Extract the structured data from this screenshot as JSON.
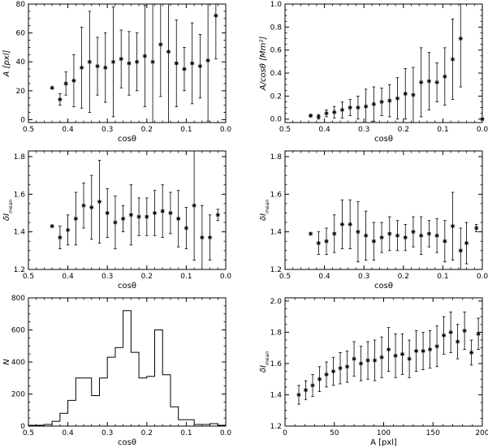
{
  "chart_data": [
    {
      "type": "scatter",
      "xlabel": "cosθ",
      "ylabel": "A [pxl]",
      "xlim": [
        0.5,
        0.0
      ],
      "ylim": [
        -2,
        80
      ],
      "xticks": [
        "0.5",
        "0.4",
        "0.3",
        "0.2",
        "0.1",
        "0.0"
      ],
      "yticks": [
        "0",
        "20",
        "40",
        "60",
        "80"
      ],
      "marker": "asterisk",
      "error_bars": true,
      "x": [
        0.44,
        0.42,
        0.405,
        0.385,
        0.365,
        0.345,
        0.325,
        0.305,
        0.285,
        0.265,
        0.245,
        0.225,
        0.205,
        0.185,
        0.165,
        0.145,
        0.125,
        0.105,
        0.085,
        0.065,
        0.045,
        0.025
      ],
      "y": [
        22,
        14,
        25,
        27,
        36,
        40,
        37,
        36,
        40,
        42,
        39,
        40,
        44,
        40,
        52,
        47,
        39,
        35,
        39,
        37,
        41,
        72
      ],
      "err": [
        0,
        4,
        8,
        18,
        28,
        35,
        20,
        24,
        38,
        20,
        22,
        20,
        35,
        44,
        36,
        50,
        30,
        15,
        28,
        22,
        42,
        30
      ]
    },
    {
      "type": "scatter",
      "xlabel": "cosθ",
      "ylabel": "A/cosθ [Mm²]",
      "xlim": [
        0.5,
        0.0
      ],
      "ylim": [
        -0.03,
        1.0
      ],
      "xticks": [
        "0.5",
        "0.4",
        "0.3",
        "0.2",
        "0.1",
        "0.0"
      ],
      "yticks": [
        "0.0",
        "0.2",
        "0.4",
        "0.6",
        "0.8",
        "1.0"
      ],
      "marker": "asterisk",
      "error_bars": true,
      "x": [
        0.435,
        0.415,
        0.395,
        0.375,
        0.355,
        0.335,
        0.315,
        0.295,
        0.275,
        0.255,
        0.235,
        0.215,
        0.195,
        0.175,
        0.155,
        0.135,
        0.115,
        0.095,
        0.075,
        0.055,
        0.0
      ],
      "y": [
        0.03,
        0.02,
        0.05,
        0.06,
        0.08,
        0.1,
        0.1,
        0.11,
        0.13,
        0.15,
        0.16,
        0.18,
        0.22,
        0.21,
        0.32,
        0.33,
        0.32,
        0.37,
        0.52,
        0.7,
        0.0
      ],
      "err": [
        0.01,
        0.02,
        0.03,
        0.05,
        0.07,
        0.07,
        0.1,
        0.15,
        0.15,
        0.12,
        0.14,
        0.18,
        0.22,
        0.24,
        0.3,
        0.25,
        0.17,
        0.25,
        0.35,
        0.42,
        0.0
      ]
    },
    {
      "type": "scatter",
      "xlabel": "cosθ",
      "ylabel": "δI_mean",
      "xlim": [
        0.5,
        0.0
      ],
      "ylim": [
        1.2,
        1.83
      ],
      "xticks": [
        "0.5",
        "0.4",
        "0.3",
        "0.2",
        "0.1",
        "0.0"
      ],
      "yticks": [
        "1.2",
        "1.4",
        "1.6",
        "1.8"
      ],
      "marker": "asterisk",
      "error_bars": true,
      "x": [
        0.44,
        0.42,
        0.4,
        0.38,
        0.36,
        0.34,
        0.32,
        0.3,
        0.28,
        0.26,
        0.24,
        0.22,
        0.2,
        0.18,
        0.16,
        0.14,
        0.12,
        0.1,
        0.08,
        0.06,
        0.04,
        0.02
      ],
      "y": [
        1.43,
        1.37,
        1.41,
        1.47,
        1.54,
        1.53,
        1.56,
        1.5,
        1.45,
        1.47,
        1.49,
        1.48,
        1.48,
        1.5,
        1.51,
        1.5,
        1.47,
        1.42,
        1.54,
        1.37,
        1.37,
        1.49
      ],
      "err": [
        0,
        0.06,
        0.08,
        0.14,
        0.12,
        0.17,
        0.22,
        0.13,
        0.14,
        0.07,
        0.16,
        0.1,
        0.1,
        0.12,
        0.14,
        0.11,
        0.15,
        0.11,
        0.29,
        0.17,
        0.12,
        0.03
      ]
    },
    {
      "type": "scatter",
      "xlabel": "cosθ",
      "ylabel": "δI_mean",
      "xlim": [
        0.5,
        0.0
      ],
      "ylim": [
        1.2,
        1.83
      ],
      "xticks": [
        "0.5",
        "0.4",
        "0.3",
        "0.2",
        "0.1",
        "0.0"
      ],
      "yticks": [
        "1.2",
        "1.4",
        "1.6",
        "1.8"
      ],
      "marker": "asterisk",
      "error_bars": true,
      "x": [
        0.435,
        0.415,
        0.395,
        0.375,
        0.355,
        0.335,
        0.315,
        0.295,
        0.275,
        0.255,
        0.235,
        0.215,
        0.195,
        0.175,
        0.155,
        0.135,
        0.115,
        0.095,
        0.075,
        0.055,
        0.04,
        0.015
      ],
      "y": [
        1.39,
        1.34,
        1.35,
        1.39,
        1.44,
        1.44,
        1.4,
        1.38,
        1.35,
        1.37,
        1.39,
        1.38,
        1.37,
        1.4,
        1.38,
        1.39,
        1.38,
        1.35,
        1.43,
        1.3,
        1.34,
        1.42
      ],
      "err": [
        0,
        0.06,
        0.07,
        0.1,
        0.13,
        0.13,
        0.16,
        0.13,
        0.1,
        0.08,
        0.09,
        0.08,
        0.07,
        0.08,
        0.1,
        0.07,
        0.09,
        0.11,
        0.18,
        0.12,
        0.11,
        0.02
      ]
    },
    {
      "type": "histogram",
      "xlabel": "cosθ",
      "ylabel": "N",
      "xlim": [
        0.5,
        0.0
      ],
      "ylim": [
        0,
        800
      ],
      "xticks": [
        "0.5",
        "0.4",
        "0.3",
        "0.2",
        "0.1",
        "0.0"
      ],
      "yticks": [
        "0",
        "200",
        "400",
        "600",
        "800"
      ],
      "bin_edges": [
        0.5,
        0.48,
        0.46,
        0.44,
        0.42,
        0.4,
        0.38,
        0.36,
        0.34,
        0.32,
        0.3,
        0.28,
        0.26,
        0.24,
        0.22,
        0.2,
        0.18,
        0.16,
        0.14,
        0.12,
        0.1,
        0.08,
        0.06,
        0.04,
        0.02,
        0.0
      ],
      "counts": [
        5,
        5,
        10,
        30,
        80,
        160,
        300,
        300,
        190,
        300,
        430,
        490,
        720,
        460,
        300,
        310,
        600,
        320,
        120,
        40,
        40,
        10,
        10,
        15,
        5
      ]
    },
    {
      "type": "scatter",
      "xlabel": "A [pxl]",
      "ylabel": "δI_mean",
      "xlim": [
        0,
        200
      ],
      "ylim": [
        1.2,
        2.02
      ],
      "xticks": [
        "0",
        "50",
        "100",
        "150",
        "200"
      ],
      "yticks": [
        "1.2",
        "1.4",
        "1.6",
        "1.8",
        "2.0"
      ],
      "marker": "asterisk",
      "error_bars": true,
      "x": [
        14,
        21,
        28,
        35,
        42,
        49,
        56,
        63,
        70,
        77,
        84,
        91,
        98,
        105,
        112,
        119,
        126,
        133,
        140,
        147,
        154,
        161,
        168,
        175,
        182,
        189,
        196
      ],
      "y": [
        1.4,
        1.43,
        1.46,
        1.5,
        1.53,
        1.55,
        1.57,
        1.58,
        1.63,
        1.6,
        1.62,
        1.62,
        1.64,
        1.69,
        1.65,
        1.66,
        1.63,
        1.68,
        1.68,
        1.69,
        1.71,
        1.78,
        1.8,
        1.74,
        1.81,
        1.67,
        1.79
      ],
      "err": [
        0.06,
        0.06,
        0.07,
        0.08,
        0.08,
        0.09,
        0.1,
        0.1,
        0.11,
        0.11,
        0.12,
        0.13,
        0.13,
        0.14,
        0.14,
        0.13,
        0.12,
        0.13,
        0.12,
        0.12,
        0.13,
        0.12,
        0.13,
        0.11,
        0.12,
        0.08,
        0.1
      ]
    }
  ]
}
